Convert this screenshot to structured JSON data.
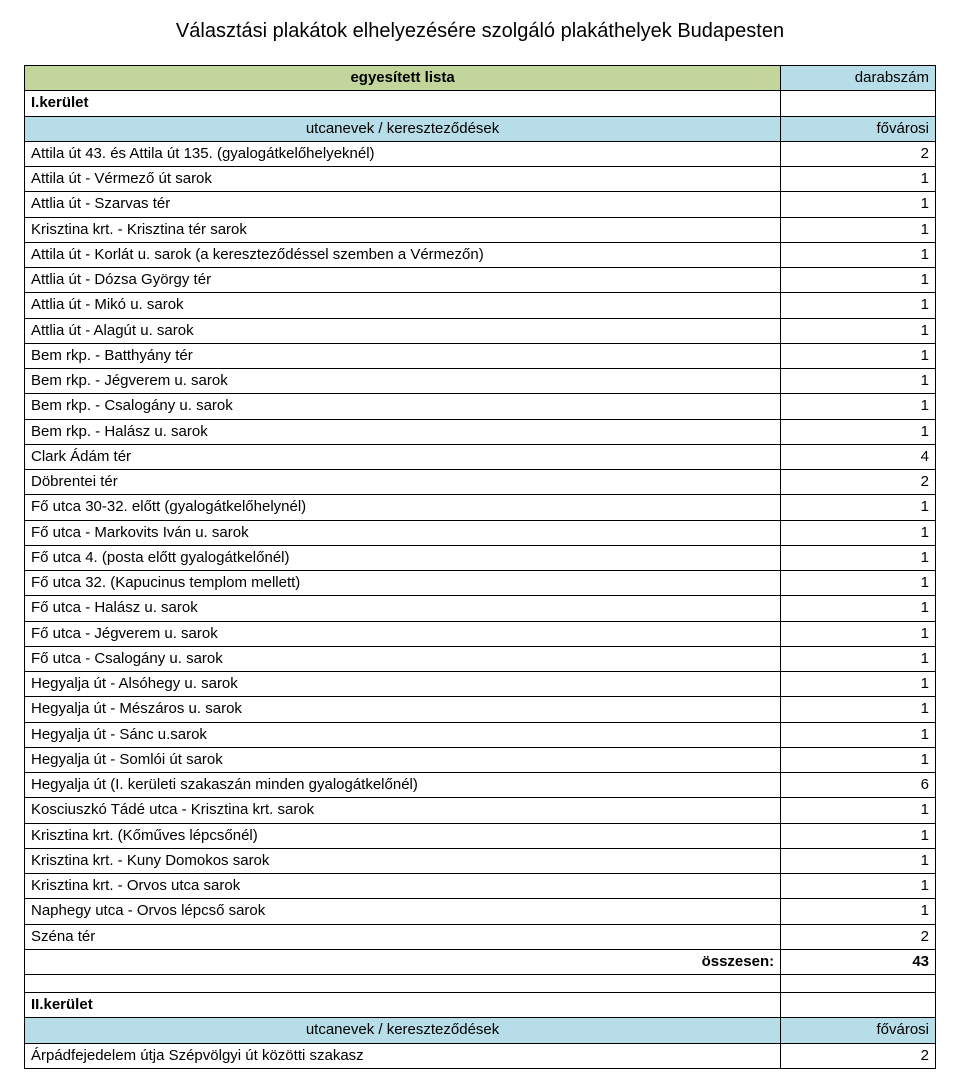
{
  "title": "Választási plakátok elhelyezésére szolgáló plakáthelyek Budapesten",
  "header1": {
    "left": "egyesített lista",
    "right": "darabszám"
  },
  "subheader": {
    "left": "utcanevek / kereszteződések",
    "right": "fővárosi"
  },
  "total_label": "összesen:",
  "colors": {
    "header_left_bg": "#c2d69b",
    "header_right_bg": "#b6dde8",
    "subheader_bg": "#b6dde8",
    "border": "#000000",
    "text": "#000000",
    "page_bg": "#ffffff"
  },
  "districts": [
    {
      "name": "I.kerület",
      "rows": [
        {
          "name": "Attila út 43. és Attila út 135. (gyalogátkelőhelyeknél)",
          "count": 2
        },
        {
          "name": "Attila út - Vérmező út sarok",
          "count": 1
        },
        {
          "name": "Attlia út - Szarvas tér",
          "count": 1
        },
        {
          "name": "Krisztina krt. - Krisztina tér sarok",
          "count": 1
        },
        {
          "name": "Attila út - Korlát u. sarok (a kereszteződéssel szemben a Vérmezőn)",
          "count": 1
        },
        {
          "name": "Attlia út - Dózsa György tér",
          "count": 1
        },
        {
          "name": "Attlia út - Mikó u. sarok",
          "count": 1
        },
        {
          "name": "Attlia út - Alagút u. sarok",
          "count": 1
        },
        {
          "name": "Bem rkp. - Batthyány tér",
          "count": 1
        },
        {
          "name": "Bem rkp. - Jégverem u. sarok",
          "count": 1
        },
        {
          "name": "Bem rkp. - Csalogány u. sarok",
          "count": 1
        },
        {
          "name": "Bem rkp. - Halász u. sarok",
          "count": 1
        },
        {
          "name": "Clark Ádám tér",
          "count": 4
        },
        {
          "name": "Döbrentei tér",
          "count": 2
        },
        {
          "name": "Fő utca 30-32. előtt (gyalogátkelőhelynél)",
          "count": 1
        },
        {
          "name": "Fő utca - Markovits Iván u. sarok",
          "count": 1
        },
        {
          "name": "Fő utca 4. (posta előtt gyalogátkelőnél)",
          "count": 1
        },
        {
          "name": "Fő utca 32. (Kapucinus templom mellett)",
          "count": 1
        },
        {
          "name": "Fő utca - Halász u. sarok",
          "count": 1
        },
        {
          "name": "Fő utca - Jégverem u. sarok",
          "count": 1
        },
        {
          "name": "Fő utca - Csalogány u. sarok",
          "count": 1
        },
        {
          "name": "Hegyalja út  - Alsóhegy u. sarok",
          "count": 1
        },
        {
          "name": "Hegyalja út  - Mészáros u. sarok",
          "count": 1
        },
        {
          "name": "Hegyalja út - Sánc u.sarok",
          "count": 1
        },
        {
          "name": "Hegyalja út  - Somlói út sarok",
          "count": 1
        },
        {
          "name": "Hegyalja út (I. kerületi szakaszán minden gyalogátkelőnél)",
          "count": 6
        },
        {
          "name": "Kosciuszkó Tádé utca - Krisztina krt. sarok",
          "count": 1
        },
        {
          "name": "Krisztina krt. (Kőműves lépcsőnél)",
          "count": 1
        },
        {
          "name": "Krisztina krt. - Kuny Domokos sarok",
          "count": 1
        },
        {
          "name": "Krisztina krt. - Orvos utca sarok",
          "count": 1
        },
        {
          "name": "Naphegy utca - Orvos lépcső sarok",
          "count": 1
        },
        {
          "name": "Széna tér",
          "count": 2
        }
      ],
      "total": 43
    },
    {
      "name": "II.kerület",
      "rows": [
        {
          "name": "Árpádfejedelem útja Szépvölgyi út közötti szakasz",
          "count": 2
        }
      ],
      "total": null
    }
  ]
}
